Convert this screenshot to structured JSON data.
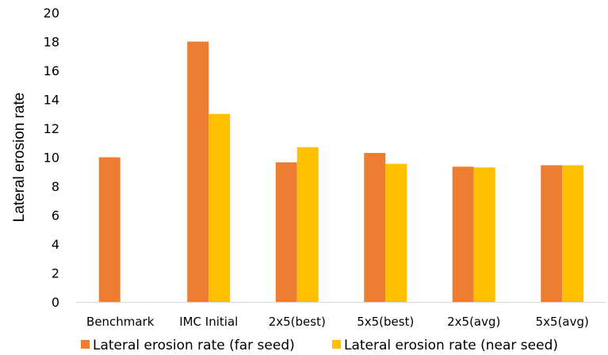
{
  "chart_data": {
    "type": "bar",
    "title": "",
    "xlabel": "",
    "ylabel": "Lateral erosion rate",
    "ylim": [
      0,
      20
    ],
    "yticks": [
      0,
      2,
      4,
      6,
      8,
      10,
      12,
      14,
      16,
      18,
      20
    ],
    "grid": false,
    "legend_position": "bottom",
    "categories": [
      "Benchmark",
      "IMC Initial",
      "2x5(best)",
      "5x5(best)",
      "2x5(avg)",
      "5x5(avg)"
    ],
    "series": [
      {
        "name": "Lateral erosion rate (far seed)",
        "color": "#ED7D31",
        "values": [
          10.0,
          18.0,
          9.65,
          10.3,
          9.35,
          9.45
        ]
      },
      {
        "name": "Lateral erosion rate (near seed)",
        "color": "#FFC000",
        "values": [
          null,
          13.0,
          10.7,
          9.55,
          9.3,
          9.45
        ]
      }
    ]
  }
}
